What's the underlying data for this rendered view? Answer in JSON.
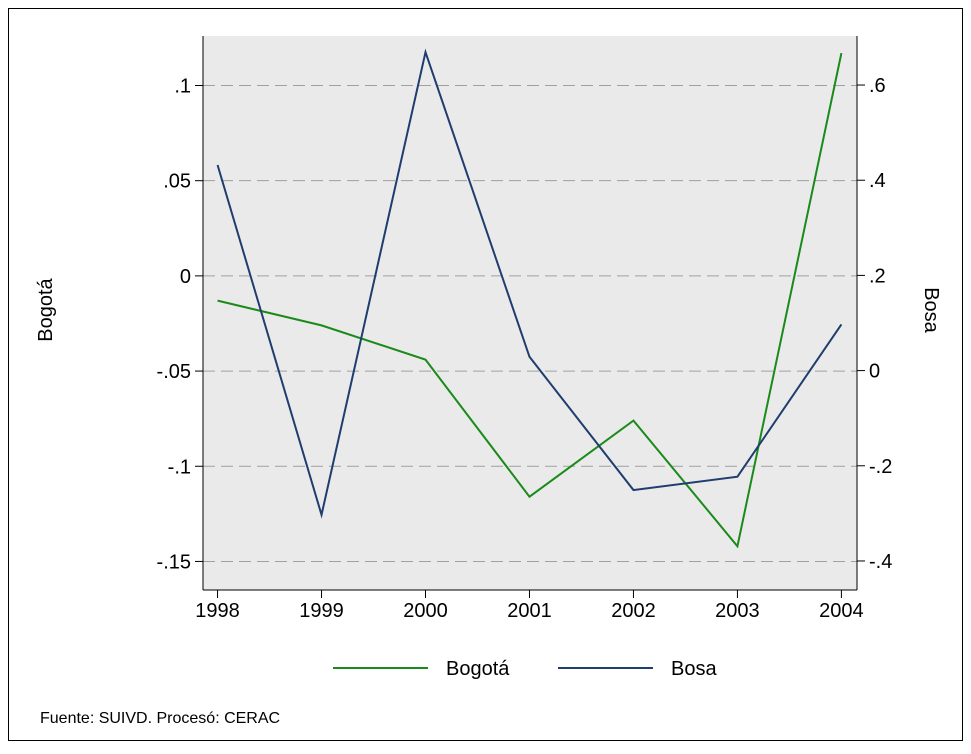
{
  "chart_data": {
    "type": "line",
    "x": [
      1998,
      1999,
      2000,
      2001,
      2002,
      2003,
      2004
    ],
    "series": [
      {
        "name": "Bogotá",
        "color": "#1a8a1a",
        "values": [
          -0.013,
          -0.026,
          -0.044,
          -0.116,
          -0.076,
          -0.142,
          0.117
        ]
      },
      {
        "name": "Bosa",
        "color": "#1f3d6e",
        "axis": "y2",
        "values": [
          0.432,
          -0.303,
          0.669,
          0.029,
          -0.251,
          -0.223,
          0.097
        ]
      }
    ],
    "ylabel": "Bogotá",
    "y2label": "Bosa",
    "xlim": [
      1997.86,
      2004.15
    ],
    "xticks": [
      1998,
      1999,
      2000,
      2001,
      2002,
      2003,
      2004
    ],
    "ylim": [
      -0.165,
      0.126
    ],
    "yticks": [
      {
        "value": 0.1,
        "label": ".1"
      },
      {
        "value": 0.05,
        "label": ".05"
      },
      0,
      {
        "value": -0.05,
        "label": "-.05"
      },
      {
        "value": -0.1,
        "label": "-.1"
      },
      {
        "value": -0.15,
        "label": "-.15"
      }
    ],
    "y2lim": [
      -0.461,
      0.703
    ],
    "y2ticks": [
      {
        "value": 0.6,
        "label": ".6"
      },
      {
        "value": 0.4,
        "label": ".4"
      },
      {
        "value": 0.2,
        "label": ".2"
      },
      0,
      {
        "value": -0.2,
        "label": "-.2"
      },
      {
        "value": -0.4,
        "label": "-.4"
      }
    ],
    "grid": true,
    "legend": "bottom",
    "note": "Fuente: SUIVD. Procesó: CERAC"
  }
}
